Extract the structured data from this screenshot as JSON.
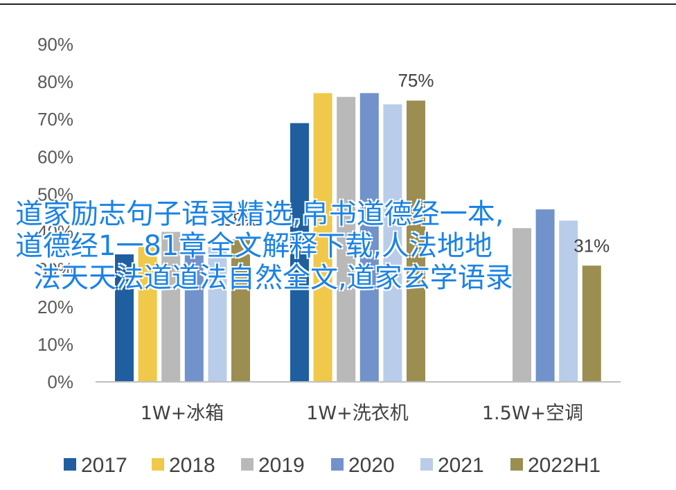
{
  "chart_data": {
    "type": "bar",
    "categories": [
      "1W+冰箱",
      "1W+洗衣机",
      "1.5W+空调"
    ],
    "series": [
      {
        "name": "2017",
        "color": "#1f5fa0",
        "values": [
          34,
          69,
          null
        ]
      },
      {
        "name": "2018",
        "color": "#f0c94a",
        "values": [
          36,
          77,
          null
        ]
      },
      {
        "name": "2019",
        "color": "#b9b9b9",
        "values": [
          40,
          76,
          41
        ]
      },
      {
        "name": "2020",
        "color": "#7192cb",
        "values": [
          37,
          77,
          46
        ]
      },
      {
        "name": "2021",
        "color": "#b9cdea",
        "values": [
          36,
          74,
          43
        ]
      },
      {
        "name": "2022H1",
        "color": "#9b8e50",
        "values": [
          38,
          75,
          31
        ]
      }
    ],
    "data_labels": [
      {
        "series": "2022H1",
        "category": 0,
        "text": "38%"
      },
      {
        "series": "2022H1",
        "category": 1,
        "text": "75%"
      },
      {
        "series": "2022H1",
        "category": 2,
        "text": "31%"
      }
    ],
    "yticks": [
      "0%",
      "10%",
      "20%",
      "30%",
      "40%",
      "50%",
      "60%",
      "70%",
      "80%",
      "90%"
    ],
    "ylim": [
      0,
      90
    ],
    "legend_position": "bottom",
    "grid": false
  },
  "overlay_text": {
    "line1": "道家励志句子语录精选,帛书道德经一本,",
    "line2": "道德经1一81章全文解释下载,人法地地",
    "line3": "法天天法道道法自然全文,道家玄学语录"
  }
}
